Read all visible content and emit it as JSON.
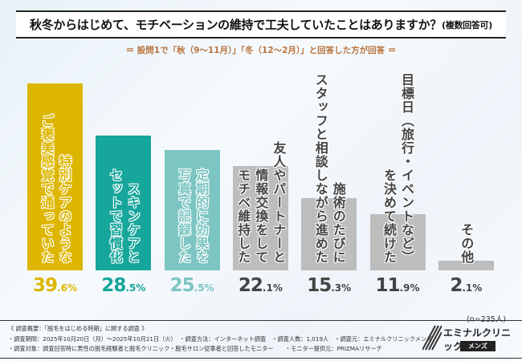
{
  "title": "秋冬からはじめて、モチベーションの維持で工夫していたことはありますか？",
  "title_suffix": "(複数回答可)",
  "subtitle": "＝ 設問1で「秋（9〜11月）」「冬（12〜2月）」と回答した方が回答 ＝",
  "sample": "(n=235人)",
  "chart_data": {
    "type": "bar",
    "categories": [
      "ご褒美感覚で通っていた特別ケアのような",
      "スキンケアとセットで習慣化",
      "定期的に効果を写真で記録した",
      "友人やパートナーと情報交換をしてモチベ維持した",
      "施術のたびにスタッフと相談しながら進めた",
      "目標日（旅行・イベントなど）を決めて続けた",
      "その他"
    ],
    "label_lines": [
      [
        "特別ケアのような",
        "ご褒美感覚で通っていた"
      ],
      [
        "スキンケアと",
        "セットで習慣化"
      ],
      [
        "定期的に効果を",
        "写真で記録した"
      ],
      [
        "友人やパートナーと",
        "情報交換をして",
        "モチベ維持した"
      ],
      [
        "施術のたびに",
        "スタッフと相談しながら進めた"
      ],
      [
        "目標日（旅行・イベントなど）",
        "を決めて続けた"
      ],
      [
        "その他"
      ]
    ],
    "values": [
      39.6,
      28.5,
      25.5,
      22.1,
      15.3,
      11.9,
      2.1
    ],
    "value_labels": [
      [
        "39",
        ".6%"
      ],
      [
        "28",
        ".5%"
      ],
      [
        "25",
        ".5%"
      ],
      [
        "22",
        ".1%"
      ],
      [
        "15",
        ".3%"
      ],
      [
        "11",
        ".9%"
      ],
      [
        "2",
        ".1%"
      ]
    ],
    "colors": [
      "#dcb600",
      "#17a69b",
      "#7cc5c2",
      "#bdbdbd",
      "#bdbdbd",
      "#bdbdbd",
      "#bdbdbd"
    ],
    "label_colors": [
      "#dcb600",
      "#17a69b",
      "#7cc5c2",
      "#444444",
      "#444444",
      "#444444",
      "#444444"
    ],
    "unit": "%"
  },
  "footer": {
    "lines": [
      "《 調査概要：「脱毛をはじめる時期」に関する調査 》",
      "・調査期間：2025年10月20日（月）〜2025年10月21日（火）　・調査方法：インターネット調査　・調査人数：1,019人　・調査元：エミナルクリニックメンズ",
      "・調査対象：調査回答時に男性の脱毛経験者と脱毛クリニック・脱毛サロン従事者と回答したモニター　　・モニター提供元：PRIZMAリサーチ"
    ]
  },
  "logo": {
    "name": "エミナルクリニック",
    "sub": "メンズ"
  }
}
